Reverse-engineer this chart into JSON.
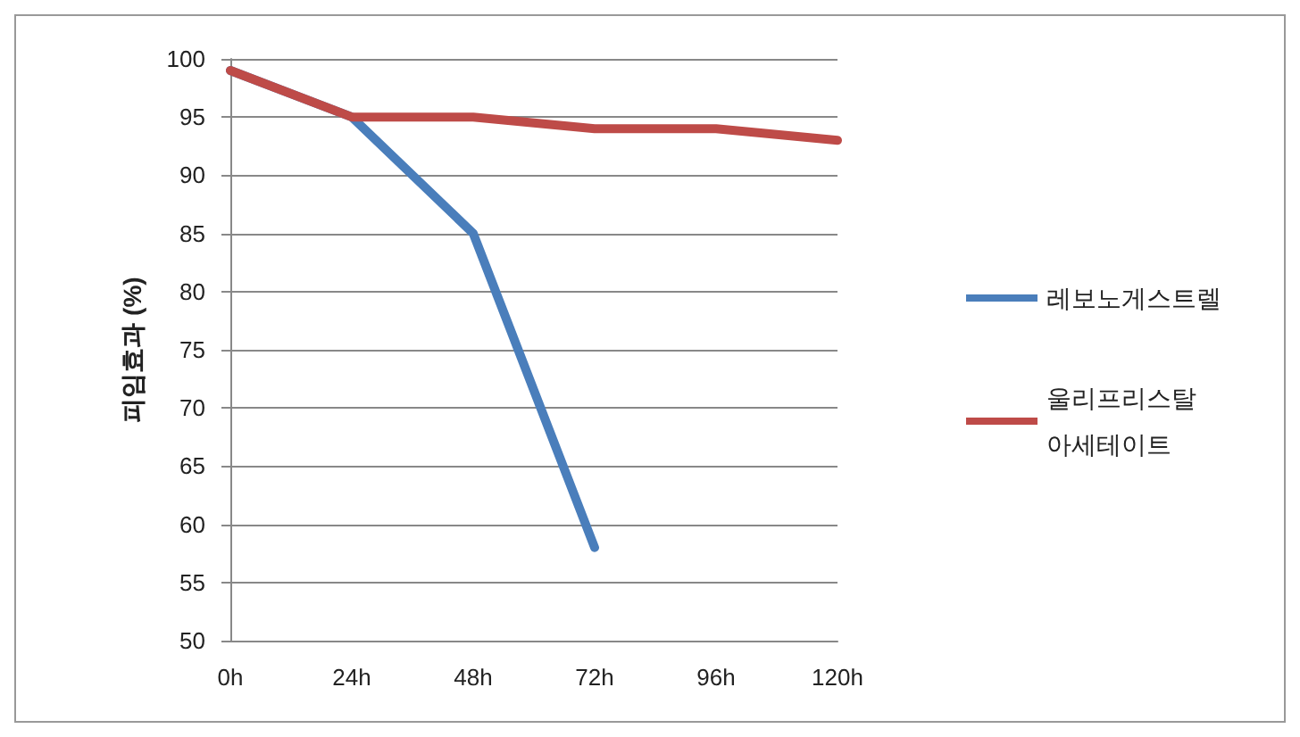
{
  "chart_data": {
    "type": "line",
    "ylabel": "피임효과 (%)",
    "categories": [
      "0h",
      "24h",
      "48h",
      "72h",
      "96h",
      "120h"
    ],
    "series": [
      {
        "name": "레보노게스트렐",
        "color": "#4a7ebb",
        "values": [
          99,
          95,
          85,
          58,
          null,
          null
        ]
      },
      {
        "name": "울리프리스탈 아세테이트",
        "color": "#be4b48",
        "values": [
          99,
          95,
          95,
          94,
          94,
          93
        ]
      }
    ],
    "ylim": [
      50,
      100
    ],
    "yticks": [
      50,
      55,
      60,
      65,
      70,
      75,
      80,
      85,
      90,
      95,
      100
    ],
    "grid": "y",
    "legend": "right",
    "marker": "none",
    "line_style": "solid"
  }
}
